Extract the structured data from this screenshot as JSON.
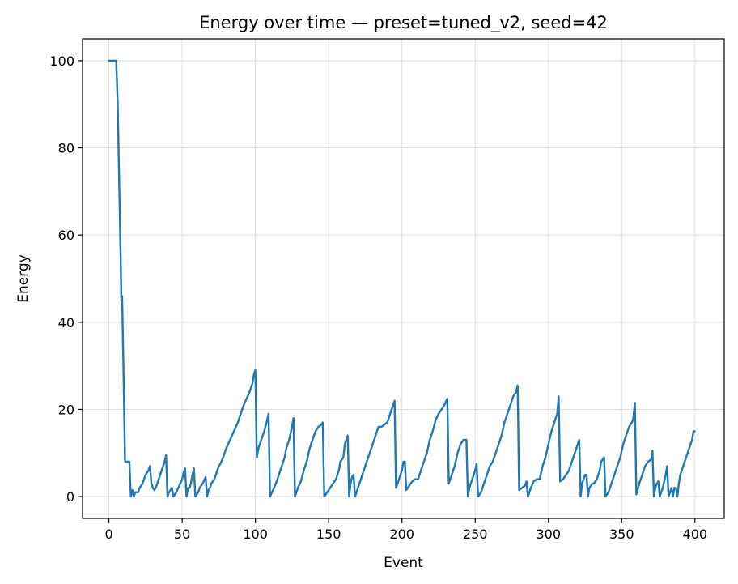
{
  "chart_data": {
    "type": "line",
    "title": "Energy over time — preset=tuned_v2, seed=42",
    "xlabel": "Event",
    "ylabel": "Energy",
    "xlim": [
      -18,
      420
    ],
    "ylim": [
      -5,
      105
    ],
    "xticks": [
      0,
      50,
      100,
      150,
      200,
      250,
      300,
      350,
      400
    ],
    "yticks": [
      0,
      20,
      40,
      60,
      80,
      100
    ],
    "grid": true,
    "colors": {
      "line": "#1f77b4",
      "grid": "#dddddd",
      "axis": "#000000"
    },
    "series": [
      {
        "points": [
          [
            0,
            100
          ],
          [
            2,
            100
          ],
          [
            4,
            100
          ],
          [
            5,
            100
          ],
          [
            6,
            90
          ],
          [
            7,
            72
          ],
          [
            8,
            55
          ],
          [
            8.5,
            45
          ],
          [
            9,
            46
          ],
          [
            10,
            28
          ],
          [
            11,
            8
          ],
          [
            12,
            8
          ],
          [
            13,
            8
          ],
          [
            14,
            8
          ],
          [
            15,
            0
          ],
          [
            16,
            1.5
          ],
          [
            17,
            0
          ],
          [
            18,
            1
          ],
          [
            20,
            1
          ],
          [
            21,
            2
          ],
          [
            23,
            3
          ],
          [
            24,
            4
          ],
          [
            25,
            5
          ],
          [
            27,
            6
          ],
          [
            28,
            7
          ],
          [
            29,
            3
          ],
          [
            30,
            2
          ],
          [
            31,
            1.5
          ],
          [
            32,
            2
          ],
          [
            34,
            4
          ],
          [
            36,
            6
          ],
          [
            38,
            8
          ],
          [
            39,
            9.5
          ],
          [
            40,
            0
          ],
          [
            41,
            1
          ],
          [
            42,
            1.5
          ],
          [
            43,
            2
          ],
          [
            44,
            0
          ],
          [
            46,
            1
          ],
          [
            48,
            2.5
          ],
          [
            50,
            4
          ],
          [
            51,
            5.5
          ],
          [
            52,
            6.5
          ],
          [
            53,
            0
          ],
          [
            54,
            2
          ],
          [
            55,
            2
          ],
          [
            56,
            3
          ],
          [
            57,
            5
          ],
          [
            58,
            6.5
          ],
          [
            59,
            0
          ],
          [
            61,
            1
          ],
          [
            62,
            2
          ],
          [
            64,
            3
          ],
          [
            66,
            4.5
          ],
          [
            67,
            0
          ],
          [
            68,
            1.5
          ],
          [
            69,
            2
          ],
          [
            70,
            3
          ],
          [
            72,
            4
          ],
          [
            74,
            6
          ],
          [
            75,
            7
          ],
          [
            76,
            7.5
          ],
          [
            78,
            9
          ],
          [
            79,
            10
          ],
          [
            80,
            11
          ],
          [
            82,
            12.5
          ],
          [
            84,
            14
          ],
          [
            86,
            15.5
          ],
          [
            88,
            17
          ],
          [
            90,
            19
          ],
          [
            92,
            21
          ],
          [
            94,
            22.5
          ],
          [
            96,
            24
          ],
          [
            98,
            26
          ],
          [
            99,
            28
          ],
          [
            100,
            29
          ],
          [
            101,
            9
          ],
          [
            102,
            11
          ],
          [
            104,
            13
          ],
          [
            106,
            15
          ],
          [
            108,
            17.5
          ],
          [
            109,
            19
          ],
          [
            110,
            0
          ],
          [
            112,
            1.5
          ],
          [
            114,
            3
          ],
          [
            116,
            5
          ],
          [
            118,
            7
          ],
          [
            120,
            9
          ],
          [
            121,
            11
          ],
          [
            123,
            13
          ],
          [
            125,
            16
          ],
          [
            126,
            18
          ],
          [
            127,
            0
          ],
          [
            129,
            2
          ],
          [
            131,
            3.5
          ],
          [
            133,
            6
          ],
          [
            135,
            8
          ],
          [
            137,
            11
          ],
          [
            139,
            13
          ],
          [
            141,
            15
          ],
          [
            143,
            16
          ],
          [
            145,
            16.5
          ],
          [
            146,
            17
          ],
          [
            147,
            0
          ],
          [
            149,
            1
          ],
          [
            151,
            2
          ],
          [
            153,
            3
          ],
          [
            155,
            4
          ],
          [
            157,
            6
          ],
          [
            158,
            8
          ],
          [
            160,
            9
          ],
          [
            161,
            12
          ],
          [
            162,
            13
          ],
          [
            163,
            14
          ],
          [
            164,
            0
          ],
          [
            165,
            3
          ],
          [
            166,
            4.5
          ],
          [
            167,
            5
          ],
          [
            168,
            0
          ],
          [
            170,
            2
          ],
          [
            172,
            4
          ],
          [
            174,
            6
          ],
          [
            176,
            8
          ],
          [
            178,
            10
          ],
          [
            180,
            12
          ],
          [
            182,
            14
          ],
          [
            184,
            16
          ],
          [
            186,
            16
          ],
          [
            188,
            16.5
          ],
          [
            190,
            17
          ],
          [
            192,
            19
          ],
          [
            194,
            21
          ],
          [
            195,
            22
          ],
          [
            196,
            2
          ],
          [
            198,
            4
          ],
          [
            200,
            6
          ],
          [
            201,
            8
          ],
          [
            202,
            8
          ],
          [
            203,
            1.5
          ],
          [
            205,
            2.5
          ],
          [
            207,
            3.5
          ],
          [
            209,
            4
          ],
          [
            211,
            4
          ],
          [
            213,
            6
          ],
          [
            215,
            8
          ],
          [
            217,
            10
          ],
          [
            219,
            13
          ],
          [
            221,
            15
          ],
          [
            223,
            17.5
          ],
          [
            225,
            19
          ],
          [
            227,
            20
          ],
          [
            229,
            21
          ],
          [
            231,
            22.5
          ],
          [
            232,
            3
          ],
          [
            234,
            5
          ],
          [
            236,
            7
          ],
          [
            238,
            10
          ],
          [
            240,
            12
          ],
          [
            242,
            13
          ],
          [
            244,
            13
          ],
          [
            245,
            0
          ],
          [
            246,
            2
          ],
          [
            248,
            4
          ],
          [
            250,
            6
          ],
          [
            251,
            7.5
          ],
          [
            252,
            0
          ],
          [
            254,
            1
          ],
          [
            256,
            3
          ],
          [
            258,
            5
          ],
          [
            260,
            7
          ],
          [
            262,
            8
          ],
          [
            264,
            10
          ],
          [
            266,
            12
          ],
          [
            268,
            14
          ],
          [
            270,
            17
          ],
          [
            272,
            19
          ],
          [
            274,
            21
          ],
          [
            276,
            23
          ],
          [
            278,
            24
          ],
          [
            279,
            25.5
          ],
          [
            280,
            1.5
          ],
          [
            282,
            2
          ],
          [
            284,
            2.5
          ],
          [
            285,
            3.5
          ],
          [
            286,
            0
          ],
          [
            288,
            2
          ],
          [
            290,
            3.5
          ],
          [
            292,
            4
          ],
          [
            294,
            4
          ],
          [
            296,
            7
          ],
          [
            298,
            9
          ],
          [
            300,
            12
          ],
          [
            302,
            15
          ],
          [
            304,
            17
          ],
          [
            306,
            19
          ],
          [
            307,
            23
          ],
          [
            308,
            3.5
          ],
          [
            310,
            4
          ],
          [
            312,
            5
          ],
          [
            314,
            6
          ],
          [
            316,
            8
          ],
          [
            318,
            10
          ],
          [
            320,
            12
          ],
          [
            321,
            13
          ],
          [
            322,
            0
          ],
          [
            323,
            3
          ],
          [
            325,
            5
          ],
          [
            326,
            5
          ],
          [
            327,
            0
          ],
          [
            328,
            2
          ],
          [
            330,
            3
          ],
          [
            331,
            3
          ],
          [
            333,
            4
          ],
          [
            335,
            6
          ],
          [
            336,
            8
          ],
          [
            338,
            9
          ],
          [
            339,
            0
          ],
          [
            341,
            1
          ],
          [
            343,
            3
          ],
          [
            345,
            5
          ],
          [
            347,
            7
          ],
          [
            349,
            9
          ],
          [
            351,
            12
          ],
          [
            353,
            14
          ],
          [
            355,
            16
          ],
          [
            357,
            17
          ],
          [
            358,
            18
          ],
          [
            359,
            21.5
          ],
          [
            360,
            0.5
          ],
          [
            362,
            3
          ],
          [
            364,
            5
          ],
          [
            366,
            7
          ],
          [
            368,
            8
          ],
          [
            370,
            8.5
          ],
          [
            371,
            10.5
          ],
          [
            372,
            0
          ],
          [
            373,
            2
          ],
          [
            374,
            3
          ],
          [
            375,
            3.5
          ],
          [
            376,
            0
          ],
          [
            378,
            2
          ],
          [
            380,
            5
          ],
          [
            381,
            7
          ],
          [
            382,
            0
          ],
          [
            384,
            2
          ],
          [
            385,
            0
          ],
          [
            386,
            2
          ],
          [
            387,
            2
          ],
          [
            388,
            0
          ],
          [
            389,
            3
          ],
          [
            390,
            5
          ],
          [
            392,
            7
          ],
          [
            394,
            9
          ],
          [
            396,
            11
          ],
          [
            398,
            13
          ],
          [
            399,
            15
          ],
          [
            400,
            15
          ]
        ]
      }
    ]
  }
}
